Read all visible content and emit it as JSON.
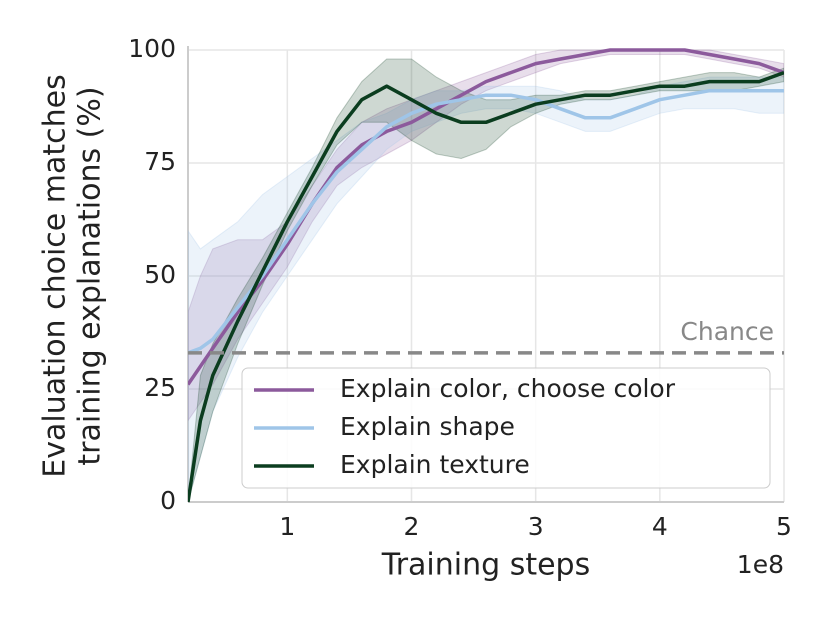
{
  "chart_data": {
    "type": "line",
    "xlabel": "Training steps",
    "ylabel": [
      "Evaluation choice matches",
      "training explanations (%)"
    ],
    "x_offset_text": "1e8",
    "x": [
      0.2,
      0.3,
      0.4,
      0.6,
      0.8,
      1.0,
      1.2,
      1.4,
      1.6,
      1.8,
      2.0,
      2.2,
      2.4,
      2.6,
      2.8,
      3.0,
      3.2,
      3.4,
      3.6,
      3.8,
      4.0,
      4.2,
      4.4,
      4.6,
      4.8,
      5.0
    ],
    "series": [
      {
        "name": "Explain color, choose color",
        "color": "#8c5a9c",
        "values": [
          26,
          30,
          34,
          42,
          49,
          57,
          66,
          74,
          79,
          82,
          84,
          87,
          90,
          93,
          95,
          97,
          98,
          99,
          100,
          100,
          100,
          100,
          99,
          98,
          97,
          95
        ],
        "lower": [
          18,
          22,
          26,
          36,
          44,
          52,
          62,
          70,
          74,
          77,
          80,
          84,
          88,
          91,
          93,
          95,
          97,
          98,
          99,
          99,
          99,
          99,
          98,
          97,
          96,
          94
        ],
        "upper": [
          42,
          50,
          56,
          58,
          58,
          62,
          70,
          78,
          84,
          87,
          89,
          91,
          93,
          95,
          97,
          99,
          100,
          100,
          100,
          100,
          100,
          100,
          100,
          99,
          98,
          97
        ]
      },
      {
        "name": "Explain shape",
        "color": "#9fc5e8",
        "values": [
          33,
          34,
          36,
          43,
          50,
          58,
          66,
          73,
          78,
          83,
          86,
          88,
          89,
          90,
          90,
          89,
          87,
          85,
          85,
          87,
          89,
          90,
          91,
          91,
          91,
          91
        ],
        "lower": [
          0,
          10,
          20,
          32,
          42,
          50,
          58,
          66,
          72,
          78,
          82,
          84,
          86,
          87,
          87,
          86,
          84,
          82,
          82,
          84,
          86,
          87,
          87,
          87,
          86,
          86
        ],
        "upper": [
          60,
          56,
          58,
          62,
          68,
          72,
          76,
          80,
          84,
          86,
          89,
          91,
          91,
          92,
          92,
          92,
          91,
          89,
          89,
          90,
          92,
          93,
          94,
          94,
          94,
          94
        ]
      },
      {
        "name": "Explain texture",
        "color": "#0b3d1f",
        "values": [
          0,
          18,
          28,
          40,
          51,
          62,
          72,
          82,
          89,
          92,
          89,
          86,
          84,
          84,
          86,
          88,
          89,
          90,
          90,
          91,
          92,
          92,
          93,
          93,
          93,
          95
        ],
        "lower": [
          0,
          10,
          20,
          35,
          48,
          60,
          70,
          79,
          84,
          84,
          80,
          77,
          76,
          78,
          83,
          86,
          88,
          89,
          89,
          90,
          91,
          91,
          91,
          91,
          92,
          93
        ],
        "upper": [
          0,
          28,
          35,
          45,
          54,
          64,
          74,
          85,
          93,
          98,
          98,
          94,
          91,
          89,
          89,
          90,
          90,
          91,
          91,
          92,
          93,
          94,
          95,
          95,
          94,
          96
        ]
      }
    ],
    "hline": {
      "value": 33,
      "label": "Chance",
      "color": "#888888"
    },
    "xlim": [
      0.2,
      5
    ],
    "ylim": [
      0,
      100
    ],
    "xticks": [
      1,
      2,
      3,
      4,
      5
    ],
    "yticks": [
      0,
      25,
      50,
      75,
      100
    ],
    "grid": true,
    "legend": "lower right"
  }
}
